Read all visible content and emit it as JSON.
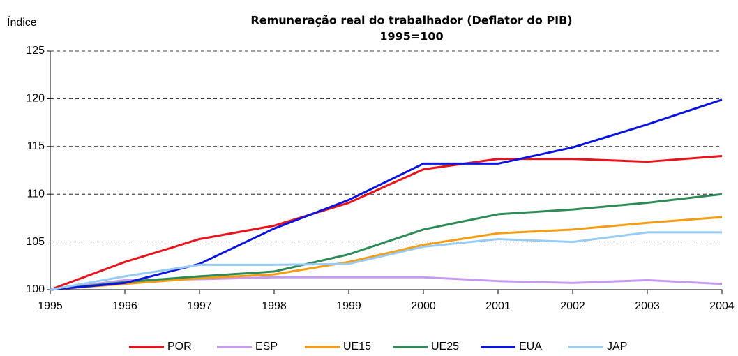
{
  "chart_data": {
    "type": "line",
    "title": "Remuneração real do trabalhador (Deflator do PIB)",
    "subtitle": "1995=100",
    "y_label": "Índice",
    "x": [
      1995,
      1996,
      1997,
      1998,
      1999,
      2000,
      2001,
      2002,
      2003,
      2004
    ],
    "xlim": [
      1995,
      2004
    ],
    "xticks": [
      1995,
      1996,
      1997,
      1998,
      1999,
      2000,
      2001,
      2002,
      2003,
      2004
    ],
    "ylim": [
      100,
      125
    ],
    "yticks": [
      100,
      105,
      110,
      115,
      120,
      125
    ],
    "grid": true,
    "legend": "bottom",
    "series": [
      {
        "name": "POR",
        "color": "#e8141c",
        "values": [
          100,
          102.9,
          105.3,
          106.7,
          109.1,
          112.6,
          113.7,
          113.7,
          113.4,
          114.0
        ]
      },
      {
        "name": "ESP",
        "color": "#c59af0",
        "values": [
          100,
          101.0,
          101.1,
          101.3,
          101.3,
          101.3,
          100.9,
          100.7,
          101.0,
          100.6
        ]
      },
      {
        "name": "UE15",
        "color": "#f59c12",
        "values": [
          100,
          100.6,
          101.2,
          101.6,
          102.9,
          104.7,
          105.9,
          106.3,
          107.0,
          107.6
        ]
      },
      {
        "name": "UE25",
        "color": "#2e8b57",
        "values": [
          100,
          100.8,
          101.4,
          101.9,
          103.7,
          106.3,
          107.9,
          108.4,
          109.1,
          110.0
        ]
      },
      {
        "name": "EUA",
        "color": "#0a14e0",
        "values": [
          100,
          100.7,
          102.7,
          106.4,
          109.4,
          113.2,
          113.2,
          114.9,
          117.3,
          119.9
        ]
      },
      {
        "name": "JAP",
        "color": "#99ccf5",
        "values": [
          100,
          101.4,
          102.6,
          102.6,
          102.7,
          104.5,
          105.3,
          105.0,
          106.0,
          106.0
        ]
      }
    ]
  }
}
